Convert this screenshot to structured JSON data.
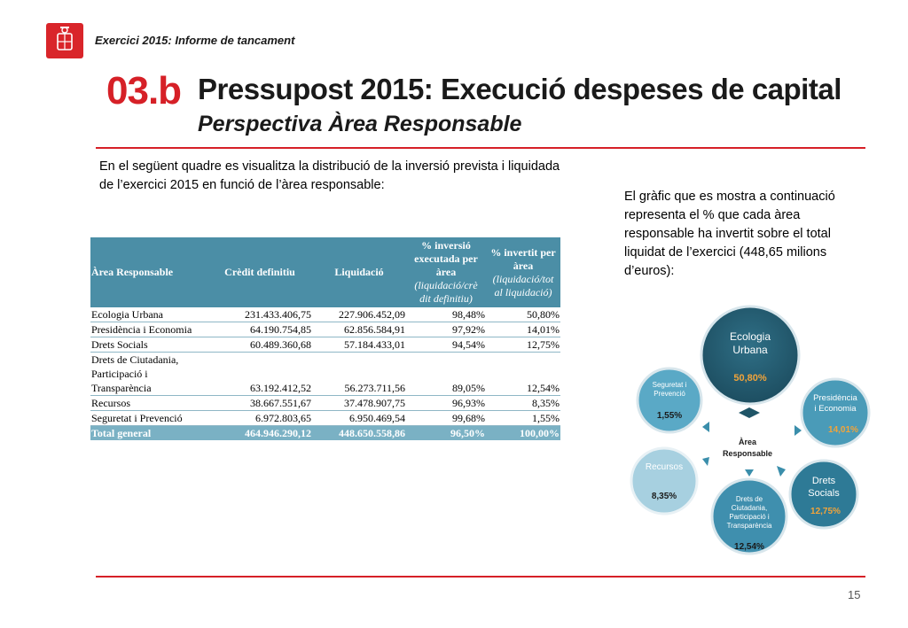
{
  "header": {
    "subtitle": "Exercici 2015: Informe de tancament"
  },
  "section": {
    "number": "03.b",
    "title": "Pressupost 2015: Execució despeses de capital",
    "subtitle": "Perspectiva Àrea Responsable"
  },
  "intro_text": "En el següent quadre es visualitza la distribució de la inversió prevista i liquidada de l’exercici 2015 en funció de l’àrea responsable:",
  "side_text": "El gràfic que es mostra a continuació representa el % que cada àrea responsable ha invertit sobre el total liquidat de l’exercici (448,65 milions d’euros):",
  "table": {
    "headers": {
      "area": "Àrea Responsable",
      "credit": "Crèdit definitiu",
      "liquidacio": "Liquidació",
      "pct_exec_main": "% inversió executada per àrea",
      "pct_exec_sub": "(liquidació/crè dit definitiu)",
      "pct_inv_main": "% invertit per àrea",
      "pct_inv_sub": "(liquidació/tot al liquidació)"
    },
    "rows": [
      {
        "area": "Ecologia Urbana",
        "credit": "231.433.406,75",
        "liquidacio": "227.906.452,09",
        "pct_exec": "98,48%",
        "pct_inv": "50,80%"
      },
      {
        "area": "Presidència i Economia",
        "credit": "64.190.754,85",
        "liquidacio": "62.856.584,91",
        "pct_exec": "97,92%",
        "pct_inv": "14,01%"
      },
      {
        "area": "Drets Socials",
        "credit": "60.489.360,68",
        "liquidacio": "57.184.433,01",
        "pct_exec": "94,54%",
        "pct_inv": "12,75%"
      },
      {
        "area_lines": [
          "Drets de Ciutadania,",
          "Participació i",
          "Transparència"
        ],
        "credit": "63.192.412,52",
        "liquidacio": "56.273.711,56",
        "pct_exec": "89,05%",
        "pct_inv": "12,54%"
      },
      {
        "area": "Recursos",
        "credit": "38.667.551,67",
        "liquidacio": "37.478.907,75",
        "pct_exec": "96,93%",
        "pct_inv": "8,35%"
      },
      {
        "area": "Seguretat i Prevenció",
        "credit": "6.972.803,65",
        "liquidacio": "6.950.469,54",
        "pct_exec": "99,68%",
        "pct_inv": "1,55%"
      }
    ],
    "total": {
      "area": "Total general",
      "credit": "464.946.290,12",
      "liquidacio": "448.650.558,86",
      "pct_exec": "96,50%",
      "pct_inv": "100,00%"
    }
  },
  "diagram": {
    "center_label": [
      "Àrea",
      "Responsable"
    ],
    "nodes": [
      {
        "label": [
          "Ecologia",
          "Urbana"
        ],
        "value": "50,80%",
        "color": "#265d72",
        "value_color": "#f2a43a"
      },
      {
        "label": [
          "Presidència",
          "i Economia"
        ],
        "value": "14,01%",
        "color": "#4a9bb8",
        "value_color": "#f2a43a"
      },
      {
        "label": [
          "Drets",
          "Socials"
        ],
        "value": "12,75%",
        "color": "#2e7a96",
        "value_color": "#f2a43a"
      },
      {
        "label": [
          "Drets de",
          "Ciutadania,",
          "Participació i",
          "Transparència"
        ],
        "value": "12,54%",
        "color": "#3f8fae",
        "value_color": "#1a1a1a"
      },
      {
        "label": [
          "Recursos"
        ],
        "value": "8,35%",
        "color": "#a7d0e0",
        "value_color": "#1a1a1a"
      },
      {
        "label": [
          "Seguretat i",
          "Prevenció"
        ],
        "value": "1,55%",
        "color": "#5aa9c6",
        "value_color": "#1a1a1a"
      }
    ]
  },
  "colors": {
    "accent_red": "#d62027",
    "table_header": "#4b8ea6",
    "table_total": "#7ab1c4"
  },
  "footer": {
    "page_number": "15"
  }
}
